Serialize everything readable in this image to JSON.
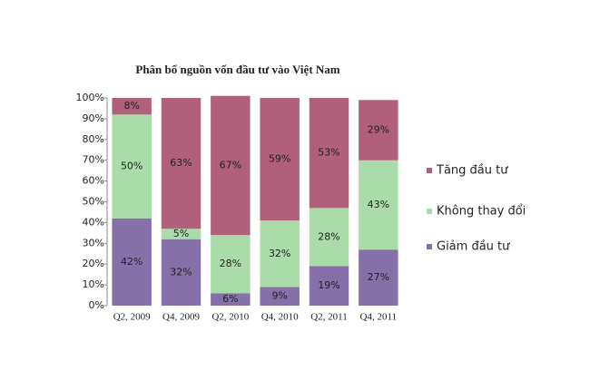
{
  "chart_data": {
    "type": "stacked-bar",
    "title": "Phân bổ nguồn vốn đầu tư vào Việt Nam",
    "categories": [
      "Q2, 2009",
      "Q4, 2009",
      "Q2, 2010",
      "Q4, 2010",
      "Q2, 2011",
      "Q4, 2011"
    ],
    "series": [
      {
        "name": "Giảm đầu tư",
        "color": "#8670a9",
        "values": [
          42,
          32,
          6,
          9,
          19,
          27
        ],
        "value_labels": [
          "42%",
          "32%",
          "6%",
          "9%",
          "19%",
          "27%"
        ]
      },
      {
        "name": "Không thay đổi",
        "color": "#a9dca9",
        "values": [
          50,
          5,
          28,
          32,
          28,
          43
        ],
        "value_labels": [
          "50%",
          "5%",
          "28%",
          "32%",
          "28%",
          "43%"
        ]
      },
      {
        "name": "Tăng đầu tư",
        "color": "#b0607a",
        "values": [
          8,
          63,
          67,
          59,
          53,
          29
        ],
        "value_labels": [
          "8%",
          "63%",
          "67%",
          "59%",
          "53%",
          "29%"
        ]
      }
    ],
    "ylim": [
      0,
      100
    ],
    "yticks": [
      {
        "value": 0,
        "label": "0%"
      },
      {
        "value": 10,
        "label": "10%"
      },
      {
        "value": 20,
        "label": "20%"
      },
      {
        "value": 30,
        "label": "30%"
      },
      {
        "value": 40,
        "label": "40%"
      },
      {
        "value": 50,
        "label": "50%"
      },
      {
        "value": 60,
        "label": "60%"
      },
      {
        "value": 70,
        "label": "70%"
      },
      {
        "value": 80,
        "label": "80%"
      },
      {
        "value": 90,
        "label": "90%"
      },
      {
        "value": 100,
        "label": "100%"
      }
    ],
    "grid": false,
    "legend": "right"
  }
}
